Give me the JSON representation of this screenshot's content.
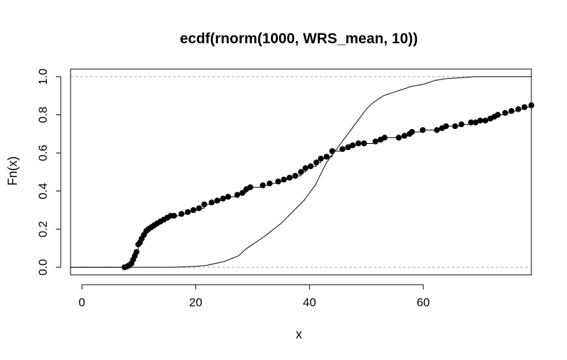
{
  "chart_data": {
    "type": "line",
    "title": "ecdf(rnorm(1000, WRS_mean, 10))",
    "xlabel": "x",
    "ylabel": "Fn(x)",
    "xlim": [
      -2,
      79
    ],
    "ylim": [
      -0.04,
      1.04
    ],
    "x_ticks": [
      "0",
      "20",
      "40",
      "60"
    ],
    "y_ticks": [
      "0.0",
      "0.2",
      "0.4",
      "0.6",
      "0.8",
      "1.0"
    ],
    "reference_lines_y": [
      0,
      1
    ],
    "grid": false,
    "series": [
      {
        "style": "points-with-steps",
        "color": "#000000",
        "x": [
          7.5,
          8.0,
          8.3,
          8.7,
          9.0,
          9.3,
          9.6,
          9.9,
          10.2,
          10.5,
          10.9,
          11.3,
          11.7,
          12.2,
          12.7,
          13.2,
          13.8,
          14.4,
          15.0,
          15.6,
          16.2,
          17.5,
          18.6,
          19.6,
          20.6,
          21.5,
          22.8,
          23.8,
          24.8,
          25.7,
          27.3,
          28.2,
          28.9,
          29.6,
          31.8,
          33.0,
          34.5,
          35.5,
          36.5,
          37.5,
          38.5,
          39.3,
          40.2,
          41.2,
          42.0,
          43.0,
          44.0,
          45.8,
          46.8,
          47.6,
          48.6,
          49.6,
          51.6,
          52.5,
          53.2,
          55.7,
          56.7,
          57.6,
          58.0,
          59.9,
          62.4,
          63.3,
          64.0,
          65.6,
          66.7,
          68.4,
          69.2,
          70.0,
          70.9,
          71.8,
          72.5,
          73.1,
          74.4,
          75.5,
          76.7,
          77.8,
          79.0
        ],
        "y": [
          0.0,
          0.005,
          0.01,
          0.02,
          0.04,
          0.06,
          0.08,
          0.12,
          0.13,
          0.15,
          0.17,
          0.19,
          0.2,
          0.21,
          0.22,
          0.23,
          0.24,
          0.25,
          0.26,
          0.27,
          0.27,
          0.28,
          0.29,
          0.3,
          0.31,
          0.33,
          0.34,
          0.35,
          0.36,
          0.37,
          0.38,
          0.39,
          0.41,
          0.42,
          0.43,
          0.44,
          0.45,
          0.46,
          0.47,
          0.48,
          0.5,
          0.52,
          0.53,
          0.55,
          0.57,
          0.58,
          0.61,
          0.62,
          0.63,
          0.64,
          0.65,
          0.65,
          0.66,
          0.67,
          0.68,
          0.68,
          0.69,
          0.7,
          0.71,
          0.72,
          0.72,
          0.73,
          0.74,
          0.74,
          0.75,
          0.76,
          0.76,
          0.77,
          0.77,
          0.78,
          0.79,
          0.8,
          0.81,
          0.82,
          0.83,
          0.84,
          0.85
        ]
      },
      {
        "style": "line",
        "color": "#000000",
        "x": [
          8,
          16,
          20,
          22,
          25,
          27.5,
          29,
          32,
          35,
          37,
          39,
          40,
          41,
          42,
          43,
          44,
          45,
          46,
          47,
          48,
          49,
          50,
          51,
          52,
          53,
          54,
          55,
          56,
          58,
          60,
          62,
          64,
          66,
          68,
          69
        ],
        "y": [
          0.0,
          0.0,
          0.005,
          0.01,
          0.03,
          0.06,
          0.1,
          0.16,
          0.23,
          0.29,
          0.35,
          0.39,
          0.43,
          0.49,
          0.55,
          0.59,
          0.63,
          0.67,
          0.71,
          0.75,
          0.79,
          0.83,
          0.86,
          0.88,
          0.9,
          0.91,
          0.92,
          0.93,
          0.95,
          0.96,
          0.98,
          0.99,
          0.993,
          0.998,
          1.0
        ]
      }
    ]
  }
}
